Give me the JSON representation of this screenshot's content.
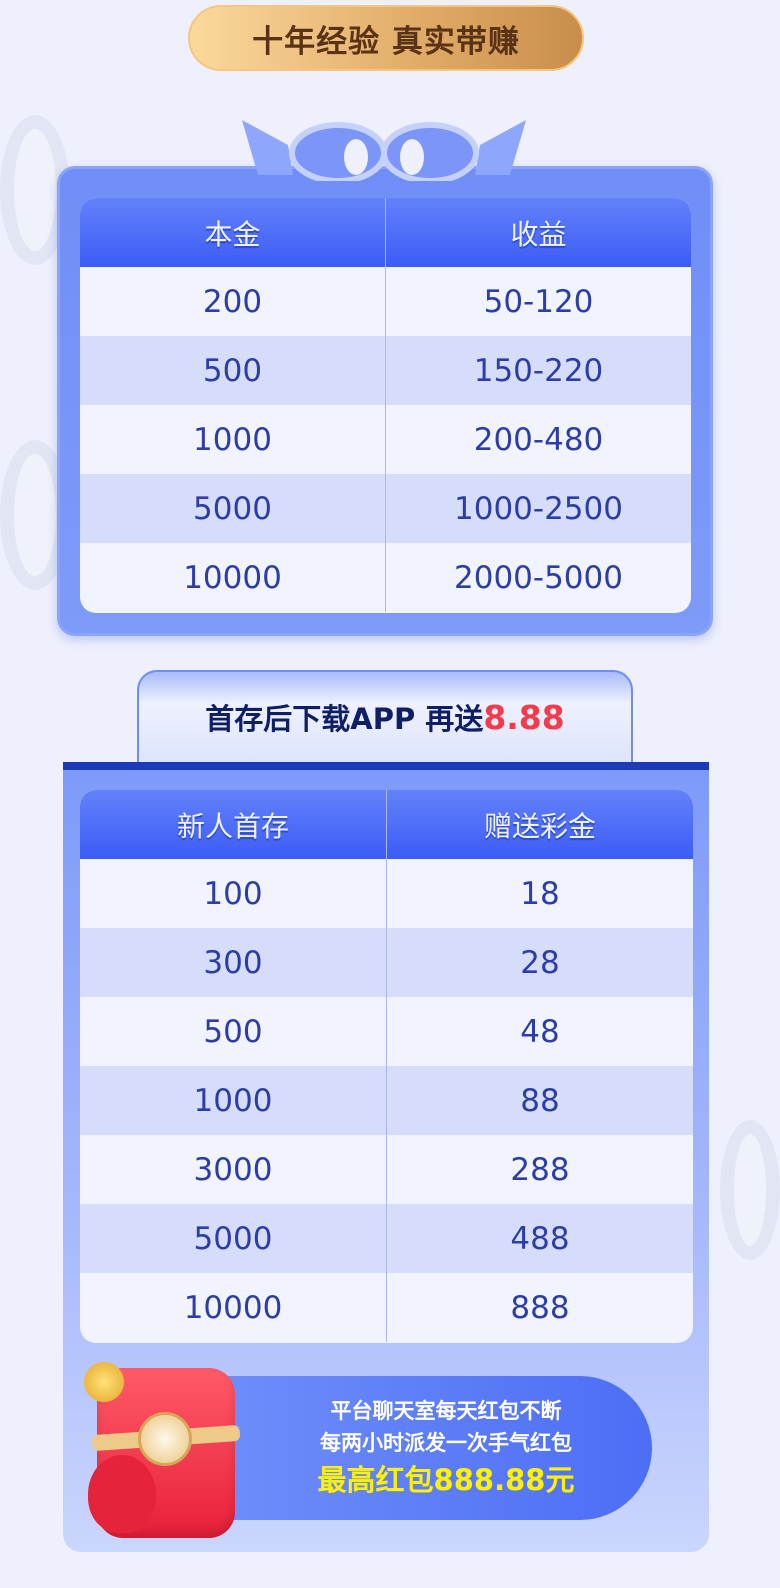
{
  "slogan": "十年经验 真实带赚",
  "table1": {
    "headers": [
      "本金",
      "收益"
    ],
    "rows": [
      [
        "200",
        "50-120"
      ],
      [
        "500",
        "150-220"
      ],
      [
        "1000",
        "200-480"
      ],
      [
        "5000",
        "1000-2500"
      ],
      [
        "10000",
        "2000-5000"
      ]
    ]
  },
  "promo": {
    "text": "首存后下载APP 再送",
    "amount": "8.88"
  },
  "table2": {
    "headers": [
      "新人首存",
      "赠送彩金"
    ],
    "rows": [
      [
        "100",
        "18"
      ],
      [
        "300",
        "28"
      ],
      [
        "500",
        "48"
      ],
      [
        "1000",
        "88"
      ],
      [
        "3000",
        "288"
      ],
      [
        "5000",
        "488"
      ],
      [
        "10000",
        "888"
      ]
    ]
  },
  "red_packet": {
    "line1": "平台聊天室每天红包不断",
    "line2": "每两小时派发一次手气红包",
    "line3": "最高红包888.88元"
  },
  "colors": {
    "accent": "#3b5cf5",
    "highlight_red": "#f33b4b",
    "highlight_yellow": "#fff200",
    "gold": "#e0aa66"
  }
}
